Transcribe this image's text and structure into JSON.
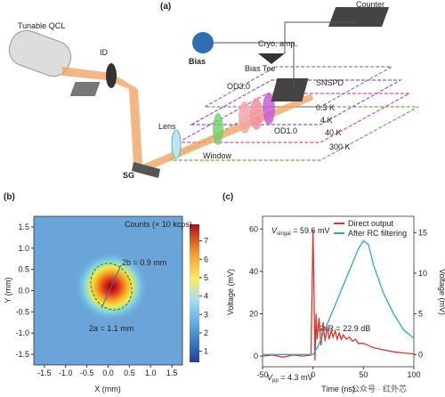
{
  "figure_a": {
    "panel": "(a)",
    "labels": {
      "qcl": "Tunable QCL",
      "id": "ID",
      "counter": "Counter",
      "cryo": "Cryo. amp.",
      "bias": "Bias",
      "biastee": "Bias Tee",
      "snspd": "SNSPD",
      "od3": "OD3.0",
      "od1": "OD1.0",
      "k03": "0.3 K",
      "k4": "4 K",
      "k40": "40 K",
      "k300": "300 K",
      "lens": "Lens",
      "window": "Window",
      "sg": "SG"
    }
  },
  "figure_b": {
    "panel": "(b)",
    "colorbar_label": "Counts (× 10 kcps)",
    "colorbar_lim": [
      0.4,
      7.9
    ],
    "colorbar_ticks": [
      1,
      2,
      3,
      4,
      5,
      6,
      7
    ],
    "xlabel": "X (mm)",
    "ylabel": "Y (mm)",
    "xlim": [
      -1.75,
      1.75
    ],
    "ylim": [
      -1.75,
      1.75
    ],
    "xticks": [
      -1.5,
      {
        "value": -1,
        "label": "-1.0"
      },
      -0.5,
      {
        "value": 0,
        "label": "0.0"
      },
      0.5,
      {
        "value": 1,
        "label": "1.0"
      },
      1.5
    ],
    "yticks": [
      -1.5,
      {
        "value": -1,
        "label": "-1.0"
      },
      -0.5,
      {
        "value": 0,
        "label": "0.0"
      },
      0.5,
      {
        "value": 1,
        "label": "1.0"
      },
      1.5
    ],
    "annotations": [
      "2b = 0.9 mm",
      "2a = 1.1 mm"
    ]
  },
  "figure_c": {
    "panel": "(c)",
    "type": "line",
    "xlabel": "Time (ns)",
    "ylabel": "Voltage (mV)",
    "y2label": "Voltage (mV)",
    "xlim": [
      -50,
      100
    ],
    "xticks": [
      -50,
      0,
      50,
      100
    ],
    "ylim": [
      -5,
      66
    ],
    "yticks": [
      0,
      20,
      40,
      60
    ],
    "y2lim": [
      -1.5,
      17
    ],
    "y2ticks": [
      0,
      5,
      10,
      15
    ],
    "series": [
      {
        "name": "Direct output",
        "color": "#e0342a",
        "x": [
          -50,
          -40,
          -30,
          -20,
          -10,
          -2,
          0,
          1,
          2,
          3,
          4,
          6,
          8,
          10,
          12,
          14,
          16,
          18,
          20,
          22,
          24,
          26,
          28,
          30,
          33,
          36,
          39,
          42,
          45,
          50,
          55,
          60,
          70,
          80,
          90,
          100
        ],
        "values": [
          0,
          0.5,
          -0.5,
          0.5,
          0,
          0.5,
          59.6,
          30,
          -2,
          20,
          8,
          18,
          5,
          16,
          7,
          14,
          8,
          12,
          9,
          12,
          8,
          11,
          8,
          10,
          8,
          9,
          7,
          8,
          6,
          6,
          5,
          4,
          3,
          2,
          1.5,
          1
        ]
      },
      {
        "name": "After RC filtering",
        "color": "#2aa7d6",
        "axis": "y2",
        "x": [
          -50,
          -25,
          0,
          5,
          10,
          20,
          30,
          40,
          45,
          50,
          55,
          60,
          70,
          80,
          90,
          100
        ],
        "values": [
          0,
          0,
          0,
          1,
          2.5,
          5.5,
          8.5,
          11.5,
          13,
          14,
          13.5,
          11,
          7.5,
          5,
          3,
          2
        ]
      }
    ],
    "annotations": {
      "vsig": {
        "symbol": "V",
        "sub": "singal",
        "text": " = 59.6 mV"
      },
      "snr": "SNR = 22.9 dB",
      "vpp": {
        "symbol": "V",
        "sub": "pp",
        "text": " = 4.3 mV"
      }
    },
    "watermark": "公众号 · 红外芯"
  }
}
